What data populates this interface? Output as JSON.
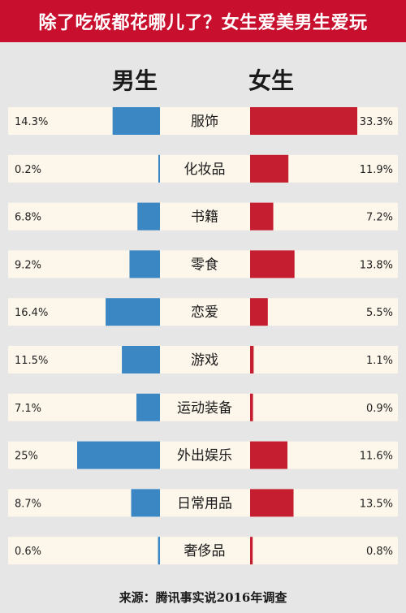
{
  "title": "除了吃饭都花哪儿了？女生爱美男生爱玩",
  "source": "来源：腾讯事实说2016年调查",
  "colors": {
    "title_bg": "#c8102e",
    "male": "#3a87c4",
    "female": "#c41e30",
    "row_bg": "#fdf6ea",
    "page_bg": "#e6e6e6"
  },
  "chart_data": {
    "type": "bar",
    "title": "除了吃饭都花哪儿了？女生爱美男生爱玩",
    "categories": [
      "服饰",
      "化妆品",
      "书籍",
      "零食",
      "恋爱",
      "游戏",
      "运动装备",
      "外出娱乐",
      "日常用品",
      "奢侈品"
    ],
    "series": [
      {
        "name": "男生",
        "values": [
          14.3,
          0.2,
          6.8,
          9.2,
          16.4,
          11.5,
          7.1,
          25,
          8.7,
          0.6
        ],
        "labels": [
          "14.3%",
          "0.2%",
          "6.8%",
          "9.2%",
          "16.4%",
          "11.5%",
          "7.1%",
          "25%",
          "8.7%",
          "0.6%"
        ]
      },
      {
        "name": "女生",
        "values": [
          33.3,
          11.9,
          7.2,
          13.8,
          5.5,
          1.1,
          0.9,
          11.6,
          13.5,
          0.8
        ],
        "labels": [
          "33.3%",
          "11.9%",
          "7.2%",
          "13.8%",
          "5.5%",
          "1.1%",
          "0.9%",
          "11.6%",
          "13.5%",
          "0.8%"
        ]
      }
    ],
    "legend": "top",
    "grid": false
  }
}
